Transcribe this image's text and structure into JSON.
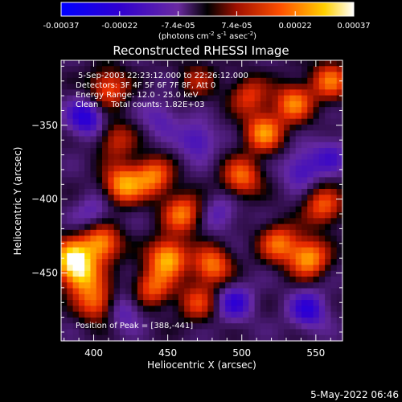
{
  "chart_data": {
    "type": "heatmap",
    "title": "Reconstructed RHESSI Image",
    "xlabel": "Heliocentric X (arcsec)",
    "ylabel": "Heliocentric Y (arcsec)",
    "xlim": [
      378,
      568
    ],
    "ylim": [
      -496,
      -306
    ],
    "x_ticks": [
      400,
      450,
      500,
      550
    ],
    "y_ticks": [
      -350,
      -400,
      -450
    ],
    "colorbar": {
      "ticks": [
        "-0.00037",
        "-0.00022",
        "-7.4e-05",
        "7.4e-05",
        "0.00022",
        "0.00037"
      ],
      "unit_prefix": "(photons cm",
      "unit_sup1": "-2",
      "unit_mid": " s",
      "unit_sup2": "-1",
      "unit_mid2": " asec",
      "unit_sup3": "-2",
      "unit_suffix": ")",
      "range": [
        -0.00037,
        0.00037
      ]
    },
    "annotations": [
      "5-Sep-2003 22:23:12.000 to 22:26:12.000",
      "Detectors: 3F 4F 5F 6F 7F 8F, Att 0",
      "Energy Range: 12.0 - 25.0 keV",
      "Clean     Total counts: 1.82E+03"
    ],
    "peak_label": "Position of Peak = [388,-441]",
    "footer_date": "5-May-2022 06:46",
    "blobs": [
      {
        "x": 385,
        "y": -440,
        "amp": 0.00034
      },
      {
        "x": 392,
        "y": -452,
        "amp": 0.00028
      },
      {
        "x": 405,
        "y": -430,
        "amp": 0.0003
      },
      {
        "x": 402,
        "y": -470,
        "amp": 0.00024
      },
      {
        "x": 420,
        "y": -390,
        "amp": 0.0003
      },
      {
        "x": 440,
        "y": -385,
        "amp": 0.00026
      },
      {
        "x": 450,
        "y": -440,
        "amp": 0.00033
      },
      {
        "x": 460,
        "y": -410,
        "amp": 0.00026
      },
      {
        "x": 440,
        "y": -460,
        "amp": 0.00022
      },
      {
        "x": 480,
        "y": -445,
        "amp": 0.00026
      },
      {
        "x": 470,
        "y": -470,
        "amp": 0.00018
      },
      {
        "x": 410,
        "y": -325,
        "amp": 0.00022
      },
      {
        "x": 415,
        "y": -360,
        "amp": 0.00016
      },
      {
        "x": 470,
        "y": -320,
        "amp": 0.00012
      },
      {
        "x": 500,
        "y": -385,
        "amp": 0.00024
      },
      {
        "x": 515,
        "y": -355,
        "amp": 0.00028
      },
      {
        "x": 535,
        "y": -335,
        "amp": 0.00026
      },
      {
        "x": 560,
        "y": -320,
        "amp": 0.00024
      },
      {
        "x": 525,
        "y": -430,
        "amp": 0.00024
      },
      {
        "x": 545,
        "y": -440,
        "amp": 0.0003
      },
      {
        "x": 555,
        "y": -405,
        "amp": 0.00022
      },
      {
        "x": 505,
        "y": -330,
        "amp": 0.00018
      },
      {
        "x": 395,
        "y": -345,
        "amp": -0.0002
      },
      {
        "x": 470,
        "y": -360,
        "amp": -0.00014
      },
      {
        "x": 445,
        "y": -345,
        "amp": -0.0001
      },
      {
        "x": 495,
        "y": -470,
        "amp": -0.00016
      },
      {
        "x": 545,
        "y": -475,
        "amp": -0.00018
      },
      {
        "x": 420,
        "y": -475,
        "amp": -0.00012
      },
      {
        "x": 560,
        "y": -370,
        "amp": -0.00012
      },
      {
        "x": 540,
        "y": -380,
        "amp": -0.00014
      },
      {
        "x": 485,
        "y": -410,
        "amp": -0.0001
      },
      {
        "x": 400,
        "y": -410,
        "amp": -0.0001
      }
    ]
  }
}
